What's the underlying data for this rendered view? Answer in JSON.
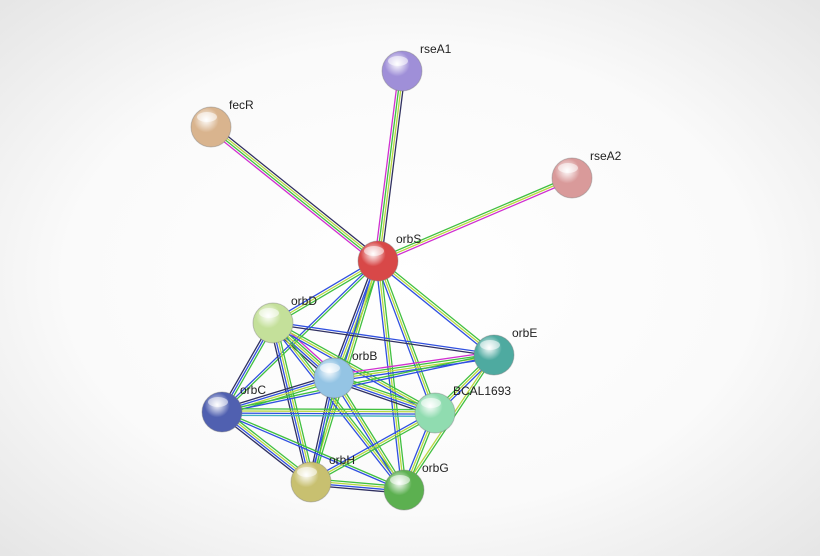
{
  "nodes": [
    {
      "label": "rseA1"
    },
    {
      "label": "fecR"
    },
    {
      "label": "rseA2"
    },
    {
      "label": "orbS"
    },
    {
      "label": "orbD"
    },
    {
      "label": "orbE"
    },
    {
      "label": "orbB"
    },
    {
      "label": "orbC"
    },
    {
      "label": "BCAL1693"
    },
    {
      "label": "orbH"
    },
    {
      "label": "orbG"
    }
  ]
}
